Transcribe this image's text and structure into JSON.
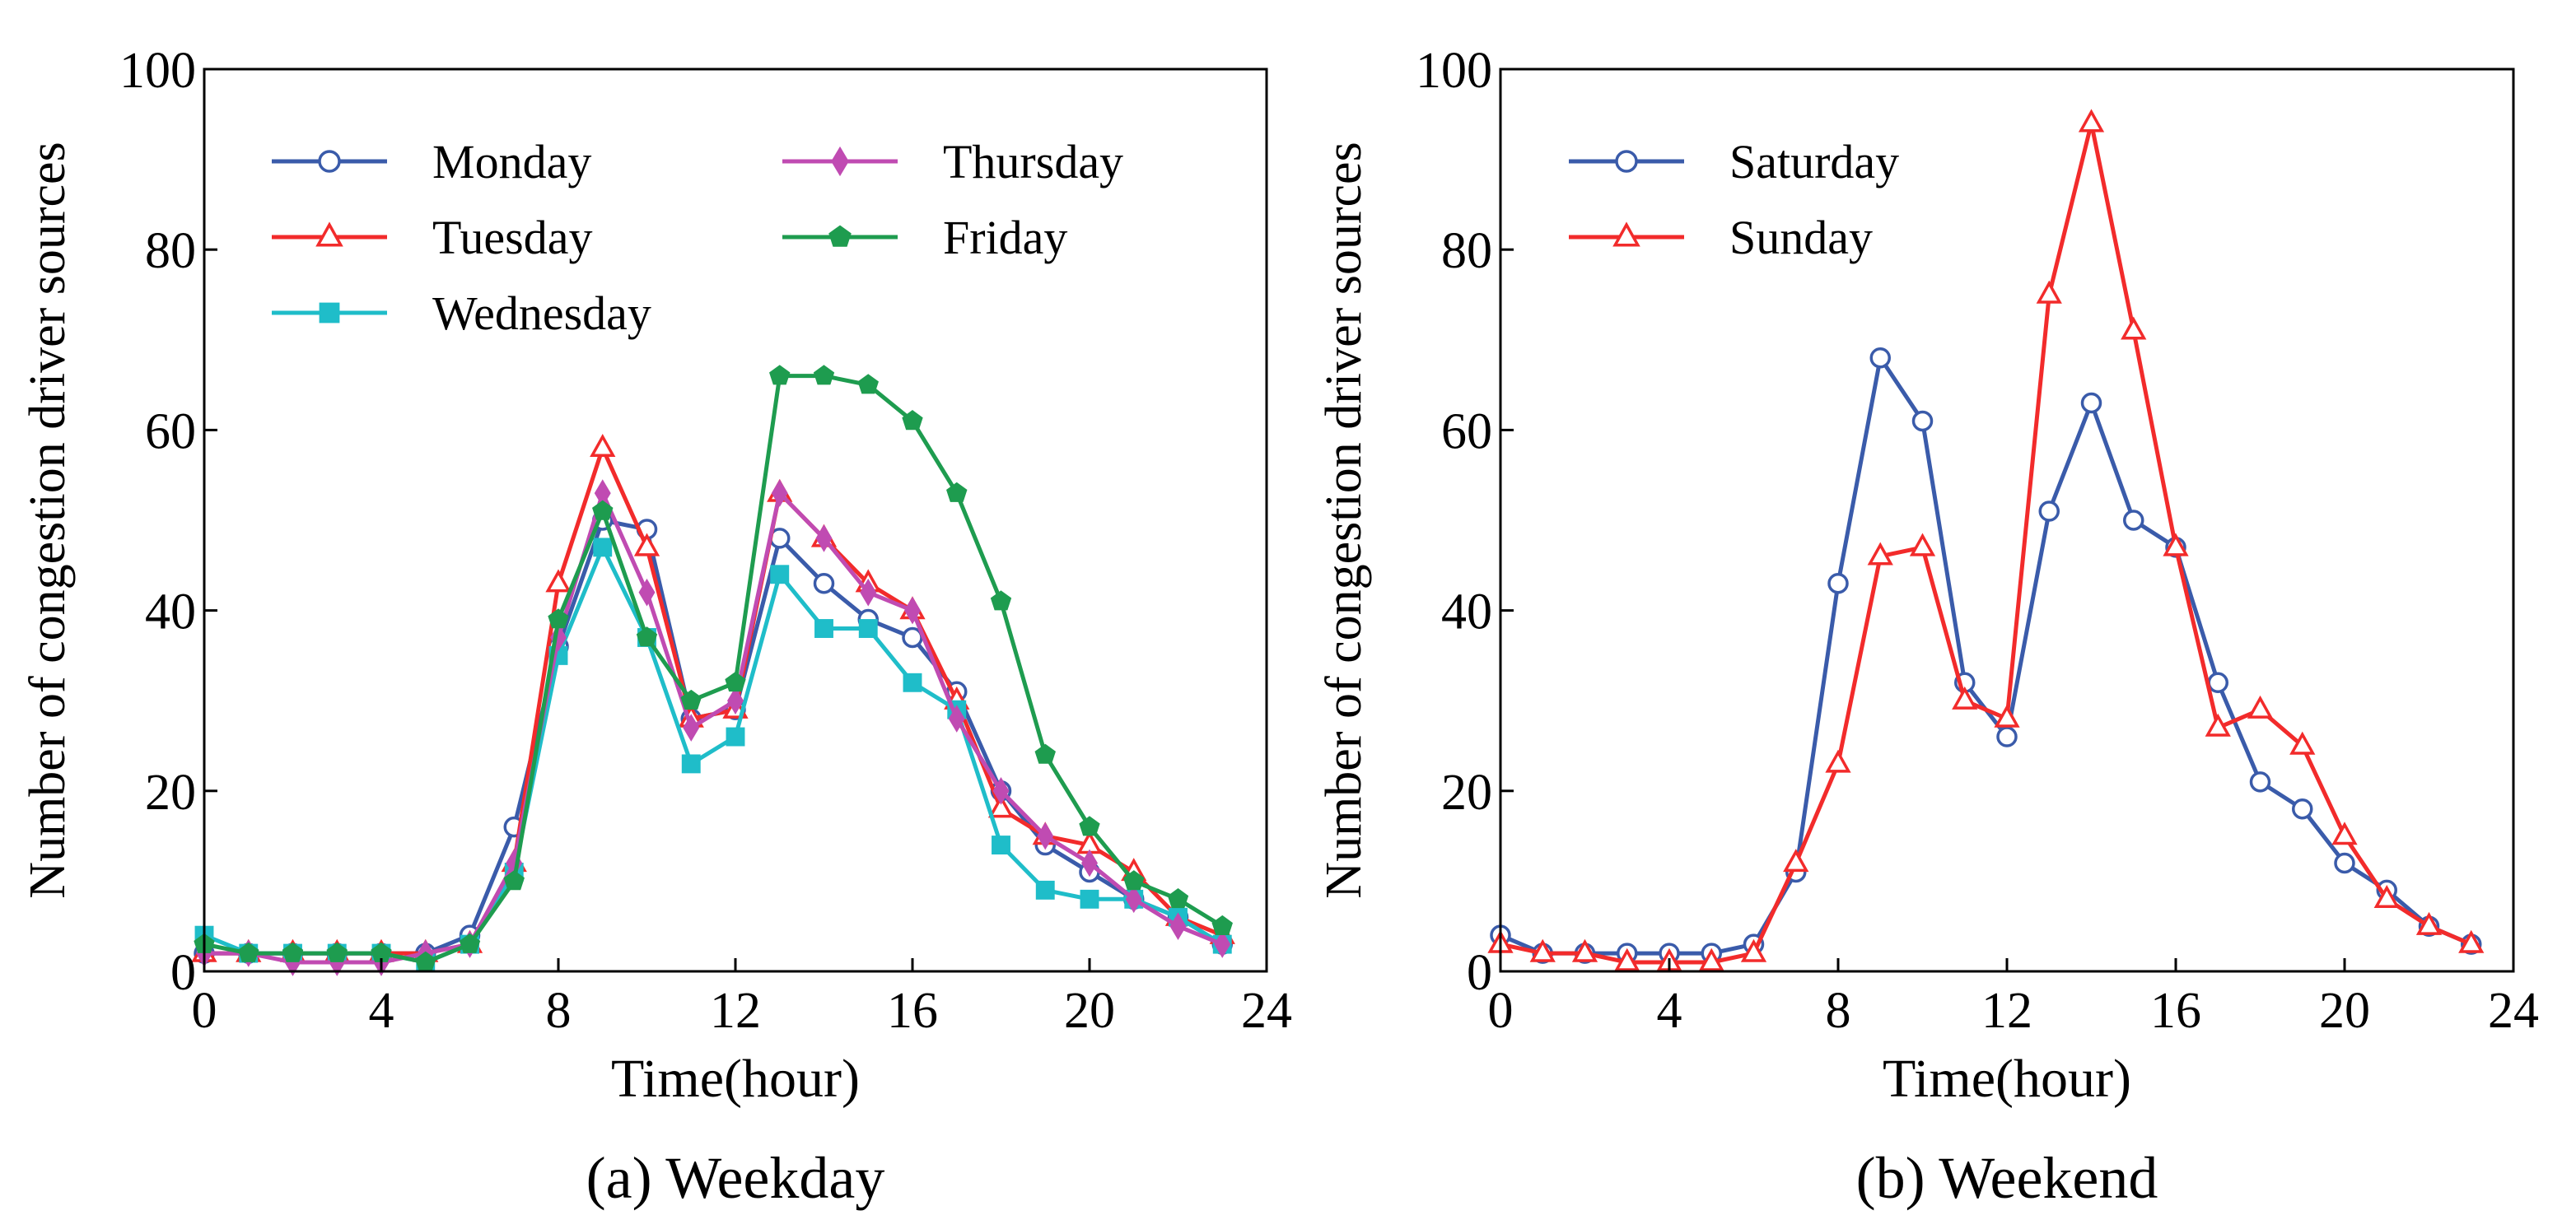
{
  "chart_data": [
    {
      "type": "line",
      "title": "(a) Weekday",
      "xlabel": "Time(hour)",
      "ylabel": "Number of congestion driver sources",
      "xlim": [
        0,
        24
      ],
      "ylim": [
        0,
        100
      ],
      "xticks": [
        0,
        4,
        8,
        12,
        16,
        20,
        24
      ],
      "yticks": [
        0,
        20,
        40,
        60,
        80,
        100
      ],
      "x": [
        0,
        1,
        2,
        3,
        4,
        5,
        6,
        7,
        8,
        9,
        10,
        11,
        12,
        13,
        14,
        15,
        16,
        17,
        18,
        19,
        20,
        21,
        22,
        23
      ],
      "legend_position": "upper-left, two columns",
      "series": [
        {
          "name": "Monday",
          "color": "#3A5BAA",
          "marker": "circle-open",
          "values": [
            2,
            2,
            2,
            2,
            2,
            2,
            4,
            16,
            36,
            50,
            49,
            28,
            29,
            48,
            43,
            39,
            37,
            31,
            20,
            14,
            11,
            8,
            6,
            3
          ]
        },
        {
          "name": "Tuesday",
          "color": "#F22B2B",
          "marker": "triangle-open",
          "values": [
            2,
            2,
            2,
            2,
            2,
            2,
            3,
            12,
            43,
            58,
            47,
            28,
            29,
            53,
            48,
            43,
            40,
            30,
            18,
            15,
            14,
            11,
            6,
            4
          ]
        },
        {
          "name": "Wednesday",
          "color": "#1FBDC9",
          "marker": "square-filled",
          "values": [
            4,
            2,
            2,
            2,
            2,
            1,
            3,
            11,
            35,
            47,
            37,
            23,
            26,
            44,
            38,
            38,
            32,
            29,
            14,
            9,
            8,
            8,
            6,
            3
          ]
        },
        {
          "name": "Thursday",
          "color": "#C04BB2",
          "marker": "diamond-filled",
          "values": [
            2,
            2,
            1,
            1,
            1,
            2,
            3,
            12,
            37,
            53,
            42,
            27,
            30,
            53,
            48,
            42,
            40,
            28,
            20,
            15,
            12,
            8,
            5,
            3
          ]
        },
        {
          "name": "Friday",
          "color": "#1E9C4F",
          "marker": "pentagon-filled",
          "values": [
            3,
            2,
            2,
            2,
            2,
            1,
            3,
            10,
            39,
            51,
            37,
            30,
            32,
            66,
            66,
            65,
            61,
            53,
            41,
            24,
            16,
            10,
            8,
            5
          ]
        }
      ]
    },
    {
      "type": "line",
      "title": "(b) Weekend",
      "xlabel": "Time(hour)",
      "ylabel": "Number of congestion driver sources",
      "xlim": [
        0,
        24
      ],
      "ylim": [
        0,
        100
      ],
      "xticks": [
        0,
        4,
        8,
        12,
        16,
        20,
        24
      ],
      "yticks": [
        0,
        20,
        40,
        60,
        80,
        100
      ],
      "x": [
        0,
        1,
        2,
        3,
        4,
        5,
        6,
        7,
        8,
        9,
        10,
        11,
        12,
        13,
        14,
        15,
        16,
        17,
        18,
        19,
        20,
        21,
        22,
        23
      ],
      "legend_position": "upper-left",
      "series": [
        {
          "name": "Saturday",
          "color": "#3A5BAA",
          "marker": "circle-open",
          "values": [
            4,
            2,
            2,
            2,
            2,
            2,
            3,
            11,
            43,
            68,
            61,
            32,
            26,
            51,
            63,
            50,
            47,
            32,
            21,
            18,
            12,
            9,
            5,
            3
          ]
        },
        {
          "name": "Sunday",
          "color": "#F22B2B",
          "marker": "triangle-open",
          "values": [
            3,
            2,
            2,
            1,
            1,
            1,
            2,
            12,
            23,
            46,
            47,
            30,
            28,
            75,
            94,
            71,
            47,
            27,
            29,
            25,
            15,
            8,
            5,
            3
          ]
        }
      ]
    }
  ]
}
